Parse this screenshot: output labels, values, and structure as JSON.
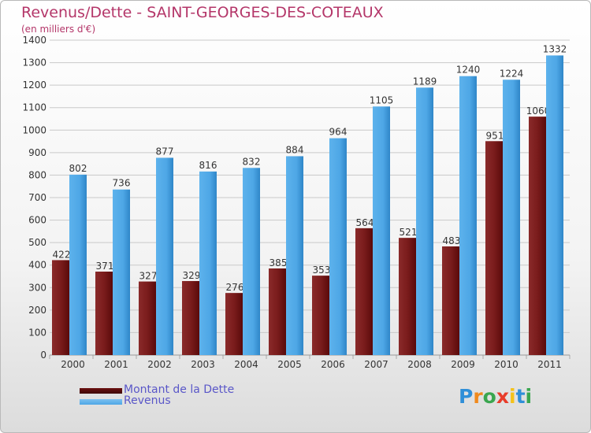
{
  "title": "Revenus/Dette - SAINT-GEORGES-DES-COTEAUX",
  "subtitle": "(en milliers d'€)",
  "colors": {
    "title": "#b43669",
    "debt": "#7a1c1c",
    "revenue": "#4ea7e6",
    "legend_text": "#5a57c8",
    "grid": "#c9c9c9",
    "axis_text": "#333333"
  },
  "legend": [
    {
      "label": "Montant de la Dette",
      "color": "#6a1010"
    },
    {
      "label": "Revenus",
      "color": "#4ea7e6"
    }
  ],
  "logo": {
    "text": "Proxiti",
    "letter_colors": [
      "#2f8fd8",
      "#f08a1d",
      "#3aa64f",
      "#e83c2a",
      "#f4c21a",
      "#2f8fd8",
      "#3aa64f"
    ]
  },
  "chart_data": {
    "type": "bar",
    "title": "Revenus/Dette - SAINT-GEORGES-DES-COTEAUX",
    "subtitle": "(en milliers d'€)",
    "xlabel": "",
    "ylabel": "",
    "ylim": [
      0,
      1400
    ],
    "ytick_step": 100,
    "grid": true,
    "legend_position": "bottom-left",
    "categories": [
      "2000",
      "2001",
      "2002",
      "2003",
      "2004",
      "2005",
      "2006",
      "2007",
      "2008",
      "2009",
      "2010",
      "2011"
    ],
    "series": [
      {
        "name": "Montant de la Dette",
        "values": [
          422,
          371,
          327,
          329,
          276,
          385,
          353,
          564,
          521,
          483,
          951,
          1060
        ]
      },
      {
        "name": "Revenus",
        "values": [
          802,
          736,
          877,
          816,
          832,
          884,
          964,
          1105,
          1189,
          1240,
          1224,
          1332
        ]
      }
    ]
  }
}
